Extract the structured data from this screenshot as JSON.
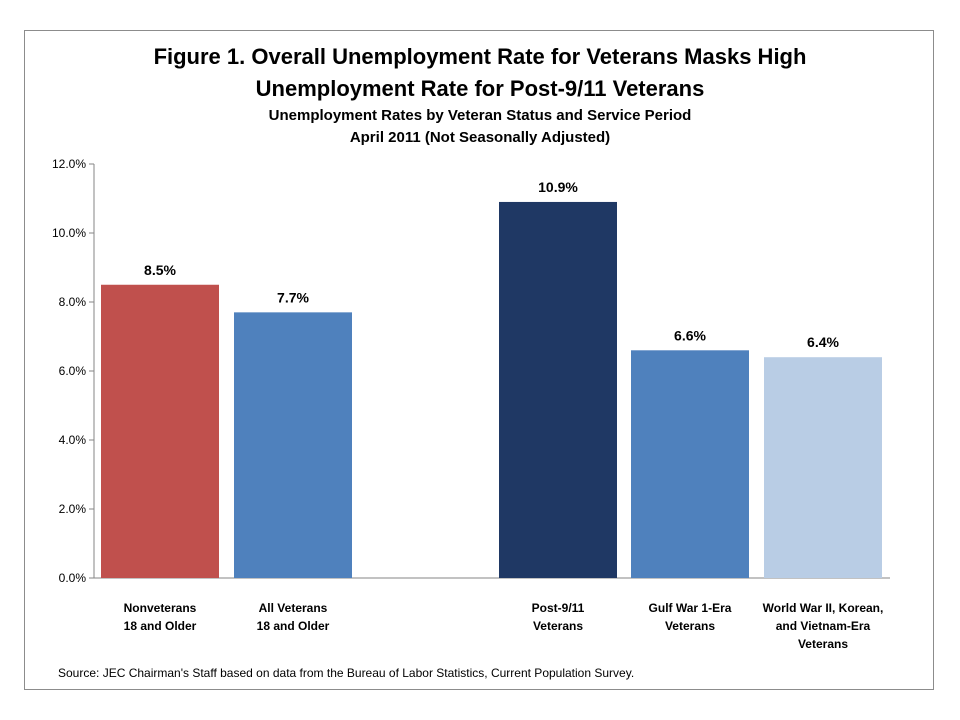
{
  "chart_data": {
    "type": "bar",
    "title": "Figure 1. Overall Unemployment Rate for Veterans Masks High Unemployment Rate for Post-9/11 Veterans",
    "title_lines": [
      "Figure 1. Overall Unemployment Rate for Veterans Masks High",
      "Unemployment Rate for Post-9/11 Veterans"
    ],
    "subtitle_lines": [
      "Unemployment Rates by Veteran Status and Service Period",
      "April 2011 (Not Seasonally Adjusted)"
    ],
    "categories": [
      [
        "Nonveterans",
        "18 and Older"
      ],
      [
        "All Veterans",
        "18 and Older"
      ],
      [
        "Post-9/11",
        "Veterans"
      ],
      [
        "Gulf War 1-Era",
        "Veterans"
      ],
      [
        "World War II, Korean,",
        "and Vietnam-Era",
        "Veterans"
      ]
    ],
    "values": [
      8.5,
      7.7,
      10.9,
      6.6,
      6.4
    ],
    "data_labels": [
      "8.5%",
      "7.7%",
      "10.9%",
      "6.6%",
      "6.4%"
    ],
    "colors": [
      "#c0504d",
      "#4f81bd",
      "#1f3864",
      "#4f81bd",
      "#b9cde5"
    ],
    "ylim": [
      0,
      12
    ],
    "yticks": [
      "0.0%",
      "2.0%",
      "4.0%",
      "6.0%",
      "8.0%",
      "10.0%",
      "12.0%"
    ],
    "xlabel": "",
    "ylabel": "",
    "grid": false,
    "legend": "none"
  },
  "source": "Source: JEC Chairman's Staff based on data from the Bureau of Labor Statistics, Current Population Survey."
}
